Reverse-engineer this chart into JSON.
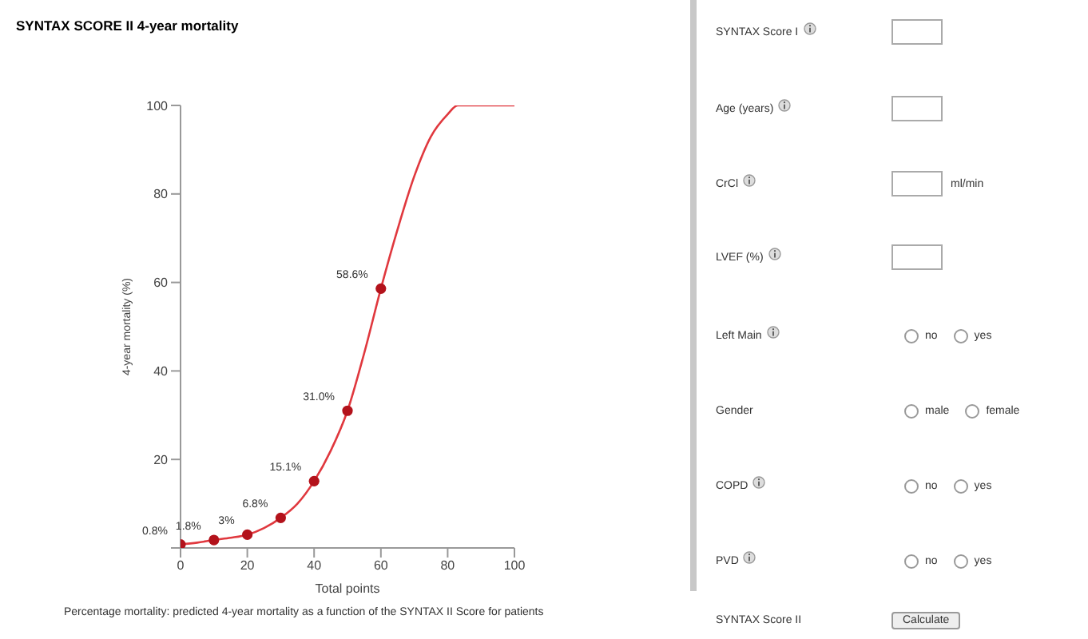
{
  "chart_data": [
    {
      "type": "line",
      "title": "SYNTAX SCORE II 4-year mortality",
      "xlabel": "Total points",
      "ylabel": "4-year mortality (%)",
      "xlim": [
        0,
        100
      ],
      "ylim": [
        0,
        100
      ],
      "xticks": [
        0,
        20,
        40,
        60,
        80,
        100
      ],
      "yticks": [
        {
          "value": 0,
          "label": null
        },
        20,
        40,
        60,
        80,
        100
      ],
      "annotations": [
        "Percentage mortality: predicted 4-year mortality as a function of the SYNTAX II Score for patients"
      ],
      "series": [
        {
          "type": "line",
          "color": "#e0383e",
          "x": [
            0,
            5,
            10,
            15,
            20,
            25,
            30,
            35,
            40,
            45,
            50,
            55,
            60,
            65,
            70,
            75,
            80,
            83,
            90,
            100
          ],
          "values": [
            0.8,
            1.2,
            1.8,
            2.3,
            3,
            4.5,
            6.8,
            10,
            15.1,
            22,
            31.0,
            44,
            58.6,
            72,
            84,
            93,
            98,
            100,
            100,
            100
          ]
        },
        {
          "type": "scatter",
          "color": "#b3121b",
          "marker": "circle",
          "x": [
            0,
            10,
            20,
            30,
            40,
            50,
            60
          ],
          "values": [
            0.8,
            1.8,
            3,
            6.8,
            15.1,
            31.0,
            58.6
          ],
          "value_labels": [
            "0.8%",
            "1.8%",
            "3%",
            "6.8%",
            "15.1%",
            "31.0%",
            "58.6%"
          ]
        }
      ]
    },
    {
      "type": "other",
      "annotations": [
        "SYNTAX Score I",
        "Age (years)",
        "CrCl",
        "ml/min",
        "LVEF (%)",
        "Left Main",
        "no",
        "yes",
        "Gender",
        "male",
        "female",
        "COPD",
        "no",
        "yes",
        "PVD",
        "no",
        "yes",
        "SYNTAX Score II",
        "Calculate"
      ]
    }
  ]
}
